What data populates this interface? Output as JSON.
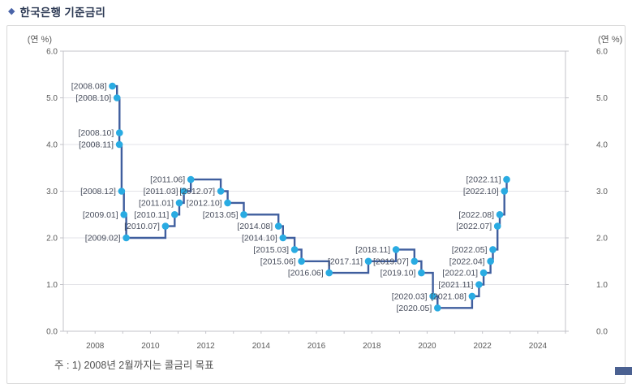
{
  "page": {
    "title": "한국은행 기준금리",
    "note": "주 : 1) 2008년 2월까지는 콜금리 목표"
  },
  "chart_data": {
    "type": "line",
    "step": true,
    "title": "한국은행 기준금리",
    "unit_label": "(연 %)",
    "ylim": [
      0.0,
      6.0
    ],
    "xlim": [
      2006.85,
      2025.0
    ],
    "ytick_values": [
      6,
      5,
      4,
      3,
      2,
      1,
      0
    ],
    "ytick_labels": [
      "6.0",
      "5.0",
      "4.0",
      "3.0",
      "2.0",
      "1.0",
      "0.0"
    ],
    "xtick_values": [
      2008,
      2010,
      2012,
      2014,
      2016,
      2018,
      2020,
      2022,
      2024
    ],
    "xtick_labels": [
      "2008",
      "2010",
      "2012",
      "2014",
      "2016",
      "2018",
      "2020",
      "2022",
      "2024"
    ],
    "minor_xtick_every_year": true,
    "grid": "horizontal",
    "legend": "none",
    "points": [
      {
        "label": "[2008.08]",
        "year": 2008,
        "month": 8,
        "value": 5.25
      },
      {
        "label": "[2008.10]",
        "year": 2008,
        "month": 10,
        "value": 5.0
      },
      {
        "label": "[2008.10]",
        "year": 2008,
        "month": 10,
        "value": 4.25
      },
      {
        "label": "[2008.11]",
        "year": 2008,
        "month": 11,
        "value": 4.0
      },
      {
        "label": "[2008.12]",
        "year": 2008,
        "month": 12,
        "value": 3.0
      },
      {
        "label": "[2009.01]",
        "year": 2009,
        "month": 1,
        "value": 2.5
      },
      {
        "label": "[2009.02]",
        "year": 2009,
        "month": 2,
        "value": 2.0
      },
      {
        "label": "[2010.07]",
        "year": 2010,
        "month": 7,
        "value": 2.25
      },
      {
        "label": "[2010.11]",
        "year": 2010,
        "month": 11,
        "value": 2.5
      },
      {
        "label": "[2011.01]",
        "year": 2011,
        "month": 1,
        "value": 2.75
      },
      {
        "label": "[2011.03]",
        "year": 2011,
        "month": 3,
        "value": 3.0
      },
      {
        "label": "[2011.06]",
        "year": 2011,
        "month": 6,
        "value": 3.25
      },
      {
        "label": "[2012.07]",
        "year": 2012,
        "month": 7,
        "value": 3.0
      },
      {
        "label": "[2012.10]",
        "year": 2012,
        "month": 10,
        "value": 2.75
      },
      {
        "label": "[2013.05]",
        "year": 2013,
        "month": 5,
        "value": 2.5
      },
      {
        "label": "[2014.08]",
        "year": 2014,
        "month": 8,
        "value": 2.25
      },
      {
        "label": "[2014.10]",
        "year": 2014,
        "month": 10,
        "value": 2.0
      },
      {
        "label": "[2015.03]",
        "year": 2015,
        "month": 3,
        "value": 1.75
      },
      {
        "label": "[2015.06]",
        "year": 2015,
        "month": 6,
        "value": 1.5
      },
      {
        "label": "[2016.06]",
        "year": 2016,
        "month": 6,
        "value": 1.25
      },
      {
        "label": "[2017.11]",
        "year": 2017,
        "month": 11,
        "value": 1.5
      },
      {
        "label": "[2018.11]",
        "year": 2018,
        "month": 11,
        "value": 1.75
      },
      {
        "label": "[2019.07]",
        "year": 2019,
        "month": 7,
        "value": 1.5
      },
      {
        "label": "[2019.10]",
        "year": 2019,
        "month": 10,
        "value": 1.25
      },
      {
        "label": "[2020.03]",
        "year": 2020,
        "month": 3,
        "value": 0.75
      },
      {
        "label": "[2020.05]",
        "year": 2020,
        "month": 5,
        "value": 0.5
      },
      {
        "label": "[2021.08]",
        "year": 2021,
        "month": 8,
        "value": 0.75
      },
      {
        "label": "[2021.11]",
        "year": 2021,
        "month": 11,
        "value": 1.0
      },
      {
        "label": "[2022.01]",
        "year": 2022,
        "month": 1,
        "value": 1.25
      },
      {
        "label": "[2022.04]",
        "year": 2022,
        "month": 4,
        "value": 1.5
      },
      {
        "label": "[2022.05]",
        "year": 2022,
        "month": 5,
        "value": 1.75
      },
      {
        "label": "[2022.07]",
        "year": 2022,
        "month": 7,
        "value": 2.25
      },
      {
        "label": "[2022.08]",
        "year": 2022,
        "month": 8,
        "value": 2.5
      },
      {
        "label": "[2022.10]",
        "year": 2022,
        "month": 10,
        "value": 3.0
      },
      {
        "label": "[2022.11]",
        "year": 2022,
        "month": 11,
        "value": 3.25
      }
    ],
    "colors": {
      "line": "#3f5e9e",
      "marker": "#29abe2",
      "grid": "#e3e3e8",
      "axis": "#c3c3c9",
      "tick_text": "#595959",
      "point_label": "#474d5c"
    }
  }
}
